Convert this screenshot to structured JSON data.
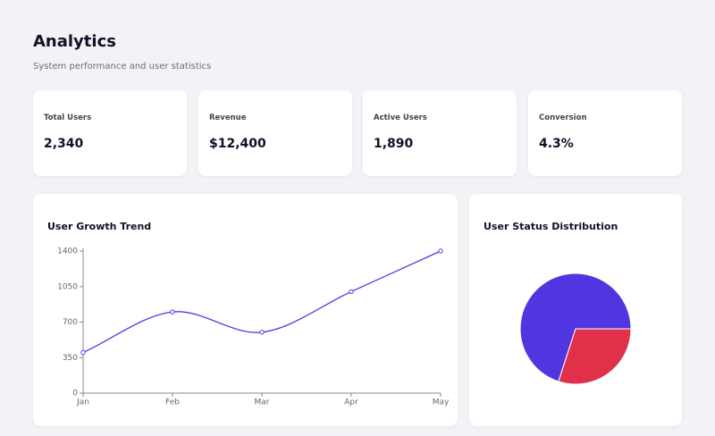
{
  "header": {
    "title": "Analytics",
    "subtitle": "System performance and user statistics"
  },
  "stats": [
    {
      "label": "Total Users",
      "value": "2,340"
    },
    {
      "label": "Revenue",
      "value": "$12,400"
    },
    {
      "label": "Active Users",
      "value": "1,890"
    },
    {
      "label": "Conversion",
      "value": "4.3%"
    }
  ],
  "chart_data": [
    {
      "type": "line",
      "title": "User Growth Trend",
      "categories": [
        "Jan",
        "Feb",
        "Mar",
        "Apr",
        "May"
      ],
      "series": [
        {
          "color": "#4f3ce0",
          "values": [
            400,
            800,
            600,
            1000,
            1400
          ]
        }
      ],
      "ylim": [
        0,
        1400
      ],
      "yticks": [
        0,
        350,
        700,
        1050,
        1400
      ]
    },
    {
      "type": "pie",
      "title": "User Status Distribution",
      "values": [
        70,
        30
      ],
      "colors": [
        "#5035e0",
        "#e0304a"
      ]
    }
  ]
}
